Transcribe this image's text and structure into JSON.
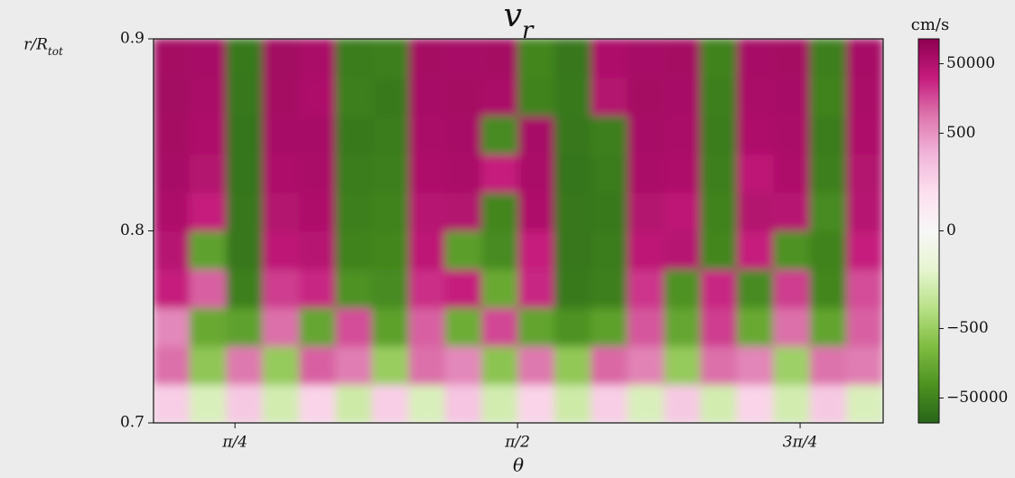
{
  "chart_data": {
    "type": "heatmap",
    "title": "v_r",
    "x_label": "θ",
    "y_label": "r/R_tot",
    "colorbar_label": "cm/s",
    "x_edges": [
      0.559,
      0.66,
      0.762,
      0.863,
      0.965,
      1.066,
      1.167,
      1.269,
      1.37,
      1.472,
      1.573,
      1.674,
      1.776,
      1.877,
      1.979,
      2.08,
      2.181,
      2.283,
      2.384,
      2.486,
      2.587
    ],
    "y_edges": [
      0.7,
      0.72,
      0.74,
      0.76,
      0.78,
      0.8,
      0.82,
      0.84,
      0.86,
      0.88,
      0.9
    ],
    "z": [
      [
        30,
        -20,
        40,
        -30,
        20,
        -40,
        30,
        -20,
        50,
        -30,
        20,
        -40,
        30,
        -20,
        40,
        -30,
        20,
        -30,
        40,
        -20
      ],
      [
        2000,
        -800,
        1500,
        -600,
        3000,
        1200,
        -500,
        2000,
        800,
        -900,
        1500,
        -700,
        2500,
        1000,
        -600,
        2000,
        900,
        -400,
        1800,
        1200
      ],
      [
        800,
        -5000,
        -8000,
        2000,
        -6000,
        5000,
        -9000,
        3000,
        -4000,
        6000,
        -7000,
        -20000,
        -9000,
        4000,
        -6000,
        8000,
        -5000,
        2000,
        -7000,
        3000
      ],
      [
        20000,
        3000,
        -60000,
        8000,
        15000,
        -20000,
        -30000,
        12000,
        20000,
        -5000,
        15000,
        -80000,
        -60000,
        10000,
        -20000,
        15000,
        -30000,
        8000,
        -40000,
        5000
      ],
      [
        40000,
        -8000,
        -90000,
        30000,
        40000,
        -50000,
        -40000,
        30000,
        -10000,
        -30000,
        20000,
        -90000,
        -70000,
        30000,
        40000,
        -40000,
        20000,
        -20000,
        -50000,
        20000
      ],
      [
        60000,
        20000,
        -90000,
        50000,
        60000,
        -60000,
        -50000,
        40000,
        50000,
        -40000,
        60000,
        -90000,
        -80000,
        50000,
        30000,
        -50000,
        50000,
        40000,
        -30000,
        40000
      ],
      [
        80000,
        50000,
        -100000,
        60000,
        70000,
        -70000,
        -60000,
        60000,
        70000,
        20000,
        70000,
        -100000,
        -70000,
        70000,
        60000,
        -60000,
        30000,
        60000,
        -60000,
        50000
      ],
      [
        90000,
        60000,
        -100000,
        80000,
        80000,
        -80000,
        -70000,
        70000,
        80000,
        -30000,
        80000,
        -90000,
        -60000,
        80000,
        70000,
        -70000,
        60000,
        70000,
        -70000,
        60000
      ],
      [
        100000,
        70000,
        -90000,
        90000,
        60000,
        -60000,
        -80000,
        80000,
        90000,
        70000,
        -50000,
        -80000,
        50000,
        90000,
        80000,
        -60000,
        70000,
        80000,
        -50000,
        70000
      ],
      [
        90000,
        80000,
        -80000,
        100000,
        70000,
        -70000,
        -60000,
        90000,
        80000,
        90000,
        -40000,
        -90000,
        60000,
        80000,
        90000,
        -50000,
        80000,
        90000,
        -60000,
        80000
      ]
    ],
    "xlim": [
      0.559,
      2.587
    ],
    "xticks": [
      {
        "value": 0.7854,
        "label": "π/4"
      },
      {
        "value": 1.5708,
        "label": "π/2"
      },
      {
        "value": 2.3562,
        "label": "3π/4"
      }
    ],
    "ylim": [
      0.7,
      0.9
    ],
    "yticks": [
      0.7,
      0.8,
      0.9
    ],
    "zlim": [
      -260000,
      260000
    ],
    "color_scale": "symlog",
    "linthresh": 10,
    "linscale": 1,
    "colormap": [
      "#276419",
      "#4d9221",
      "#7fbc41",
      "#b8e186",
      "#e6f5d0",
      "#f7f7f7",
      "#fde0ef",
      "#f1b6da",
      "#de77ae",
      "#c51b7d",
      "#8e0152"
    ],
    "zticks": [
      {
        "value": -50000,
        "label": "−50000"
      },
      {
        "value": -500,
        "label": "−500"
      },
      0,
      500,
      50000
    ]
  }
}
